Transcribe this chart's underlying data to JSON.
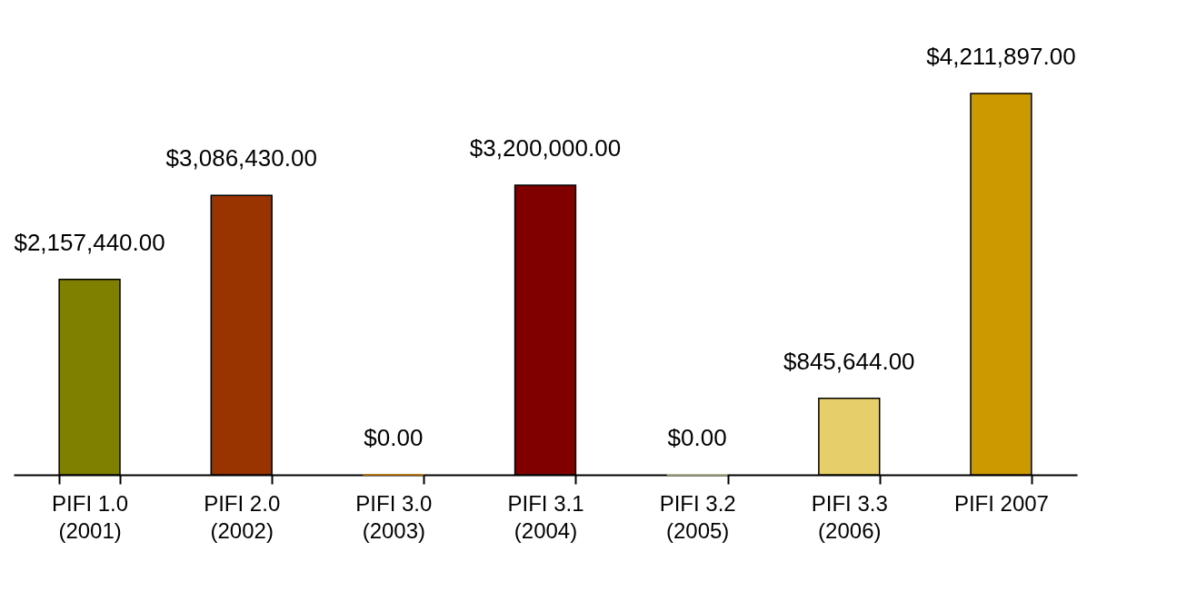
{
  "chart_data": {
    "type": "bar",
    "categories": [
      "PIFI 1.0\n(2001)",
      "PIFI 2.0\n(2002)",
      "PIFI 3.0\n(2003)",
      "PIFI 3.1\n(2004)",
      "PIFI 3.2\n(2005)",
      "PIFI 3.3\n(2006)",
      "PIFI 2007"
    ],
    "values": [
      2157440,
      3086430,
      0,
      3200000,
      0,
      845644,
      4211897
    ],
    "value_labels": [
      "$2,157,440.00",
      "$3,086,430.00",
      "$0.00",
      "$3,200,000.00",
      "$0.00",
      "$845,644.00",
      "$4,211,897.00"
    ],
    "colors": [
      "#808000",
      "#993300",
      "#cc7a00",
      "#800000",
      "#c8c89a",
      "#e6cf6a",
      "#cc9900"
    ],
    "grid": false
  }
}
